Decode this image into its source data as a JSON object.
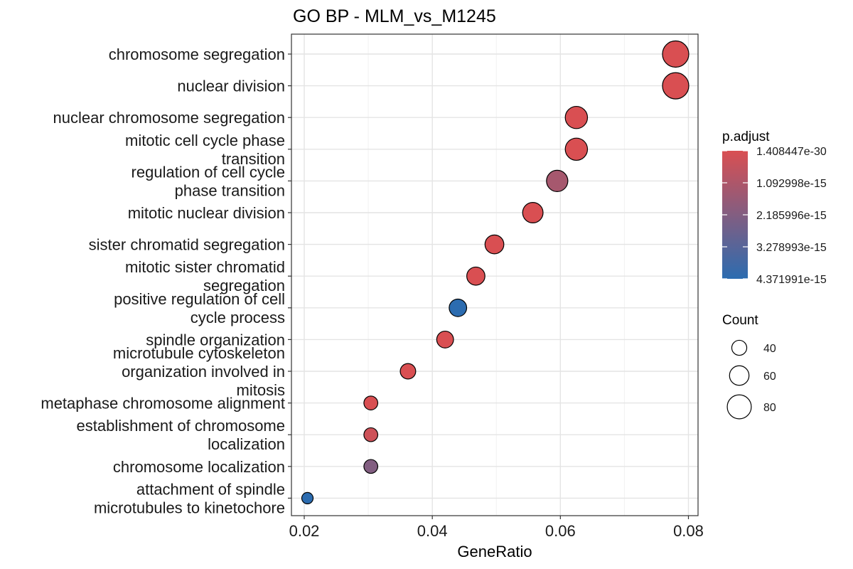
{
  "chart_data": {
    "type": "scatter",
    "title": "GO BP - MLM_vs_M1245",
    "xlabel": "GeneRatio",
    "ylabel": "",
    "xlim": [
      0.018,
      0.0815
    ],
    "x_ticks": [
      "0.02",
      "0.04",
      "0.06",
      "0.08"
    ],
    "x_tick_values": [
      0.02,
      0.04,
      0.06,
      0.08
    ],
    "grid": true,
    "legend_placement": "right",
    "color_legend": {
      "title": "p.adjust",
      "labels": [
        "1.408447e-30",
        "1.092998e-15",
        "2.185996e-15",
        "3.278993e-15",
        "4.371991e-15"
      ],
      "low_color": "#d94f52",
      "high_color": "#2c6cb0"
    },
    "size_legend": {
      "title": "Count",
      "labels": [
        "40",
        "60",
        "80"
      ],
      "values": [
        40,
        60,
        80
      ]
    },
    "points": [
      {
        "term": [
          "chromosome segregation"
        ],
        "gene_ratio": 0.078,
        "count": 90,
        "p_adjust": 0.0
      },
      {
        "term": [
          "nuclear division"
        ],
        "gene_ratio": 0.078,
        "count": 90,
        "p_adjust": 0.0
      },
      {
        "term": [
          "nuclear chromosome segregation"
        ],
        "gene_ratio": 0.0625,
        "count": 72,
        "p_adjust": 0.0
      },
      {
        "term": [
          "mitotic cell cycle phase",
          "transition"
        ],
        "gene_ratio": 0.0625,
        "count": 72,
        "p_adjust": 0.0
      },
      {
        "term": [
          "regulation of cell cycle",
          "phase transition"
        ],
        "gene_ratio": 0.0595,
        "count": 68,
        "p_adjust": 1.3e-15
      },
      {
        "term": [
          "mitotic nuclear division"
        ],
        "gene_ratio": 0.0557,
        "count": 64,
        "p_adjust": 0.0
      },
      {
        "term": [
          "sister chromatid segregation"
        ],
        "gene_ratio": 0.0497,
        "count": 57,
        "p_adjust": 0.0
      },
      {
        "term": [
          "mitotic sister chromatid",
          "segregation"
        ],
        "gene_ratio": 0.0468,
        "count": 54,
        "p_adjust": 0.0
      },
      {
        "term": [
          "positive regulation of cell",
          "cycle process"
        ],
        "gene_ratio": 0.044,
        "count": 51,
        "p_adjust": 4.37e-15
      },
      {
        "term": [
          "spindle organization"
        ],
        "gene_ratio": 0.042,
        "count": 48,
        "p_adjust": 0.0
      },
      {
        "term": [
          "microtubule cytoskeleton",
          "organization involved in",
          "mitosis"
        ],
        "gene_ratio": 0.0362,
        "count": 42,
        "p_adjust": 0.0
      },
      {
        "term": [
          "metaphase chromosome alignment"
        ],
        "gene_ratio": 0.0304,
        "count": 35,
        "p_adjust": 0.0
      },
      {
        "term": [
          "establishment of chromosome",
          "localization"
        ],
        "gene_ratio": 0.0304,
        "count": 35,
        "p_adjust": 3e-16
      },
      {
        "term": [
          "chromosome localization"
        ],
        "gene_ratio": 0.0304,
        "count": 35,
        "p_adjust": 2.2e-15
      },
      {
        "term": [
          "attachment of spindle",
          "microtubules to kinetochore"
        ],
        "gene_ratio": 0.0205,
        "count": 24,
        "p_adjust": 4.37e-15
      }
    ]
  }
}
